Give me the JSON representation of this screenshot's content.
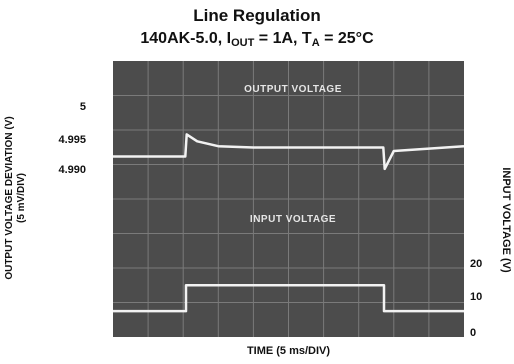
{
  "chart_data": {
    "type": "line",
    "title": "Line Regulation",
    "subtitle": {
      "part": "140AK-5.0, I",
      "iout_sub": "OUT",
      "mid": " = 1A, T",
      "ta_sub": "A",
      "end": " = 25°C"
    },
    "xlabel": "TIME (5 ms/DIV)",
    "ylabel_left_line1": "OUTPUT VOLTAGE DEVIATION (V)",
    "ylabel_left_line2": "(5 mV/DIV)",
    "ylabel_right": "INPUT VOLTAGE (V)",
    "left_ticks": [
      "5",
      "4.995",
      "4.990"
    ],
    "right_ticks": [
      "20",
      "10",
      "0"
    ],
    "grid": true,
    "x_divisions": 10,
    "y_divisions": 8,
    "x": [
      0,
      5,
      10,
      15,
      20,
      25,
      30,
      35,
      40,
      45,
      50
    ],
    "series": [
      {
        "name": "OUTPUT VOLTAGE",
        "x": [
          0,
          10.3,
          10.5,
          12,
          15,
          20,
          30,
          38.5,
          38.7,
          40,
          50
        ],
        "values": [
          4.9921,
          4.9921,
          4.9953,
          4.9943,
          4.9936,
          4.9934,
          4.9934,
          4.9934,
          4.9903,
          4.9929,
          4.9936
        ]
      },
      {
        "name": "INPUT VOLTAGE",
        "x": [
          0,
          10.4,
          10.4,
          38.6,
          38.6,
          50
        ],
        "values": [
          7.5,
          7.5,
          15,
          15,
          7.5,
          7.5
        ]
      }
    ],
    "colors": {
      "screen": "#4c4c4c",
      "grid": "#7a7a7a",
      "trace": "#f2f2f2",
      "label": "#e6e6e6"
    }
  }
}
